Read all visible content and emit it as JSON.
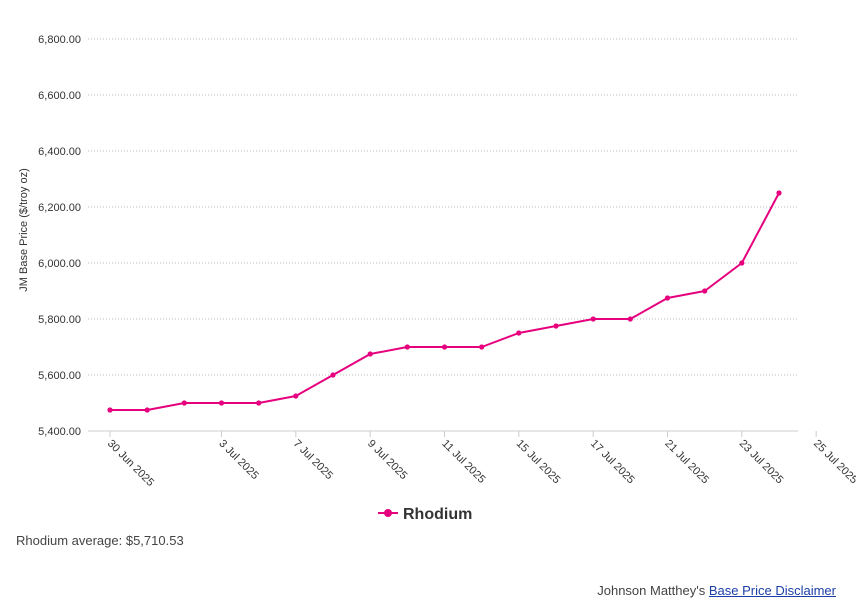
{
  "chart_data": {
    "type": "line",
    "ylabel": "JM Base Price ($/troy oz)",
    "ylim": [
      5400,
      6800
    ],
    "yticks": [
      "5,400.00",
      "5,600.00",
      "5,800.00",
      "6,000.00",
      "6,200.00",
      "6,400.00",
      "6,600.00",
      "6,800.00"
    ],
    "ytick_values": [
      5400,
      5600,
      5800,
      6000,
      6200,
      6400,
      6600,
      6800
    ],
    "xticks": [
      "30 Jun 2025",
      "3 Jul 2025",
      "7 Jul 2025",
      "9 Jul 2025",
      "11 Jul 2025",
      "15 Jul 2025",
      "17 Jul 2025",
      "21 Jul 2025",
      "23 Jul 2025",
      "25 Jul 2025"
    ],
    "xtick_dates": [
      "2025-06-30",
      "2025-07-03",
      "2025-07-07",
      "2025-07-09",
      "2025-07-11",
      "2025-07-15",
      "2025-07-17",
      "2025-07-21",
      "2025-07-23",
      "2025-07-25"
    ],
    "grid": true,
    "legend": "bottom-center",
    "series": [
      {
        "name": "Rhodium",
        "color": "#e6007e",
        "x": [
          "2025-06-30",
          "2025-07-01",
          "2025-07-02",
          "2025-07-03",
          "2025-07-04",
          "2025-07-07",
          "2025-07-08",
          "2025-07-09",
          "2025-07-10",
          "2025-07-11",
          "2025-07-14",
          "2025-07-15",
          "2025-07-16",
          "2025-07-17",
          "2025-07-18",
          "2025-07-21",
          "2025-07-22",
          "2025-07-23",
          "2025-07-24",
          "2025-07-25"
        ],
        "values": [
          5475,
          5475,
          5500,
          5500,
          5500,
          5525,
          5600,
          5675,
          5700,
          5700,
          5700,
          5750,
          5775,
          5800,
          5800,
          5875,
          5900,
          6000,
          6250,
          null
        ]
      }
    ]
  },
  "average": {
    "text": "Rhodium average: $5,710.53"
  },
  "disclaimer": {
    "prefix": "Johnson Matthey's ",
    "link": "Base Price Disclaimer"
  }
}
